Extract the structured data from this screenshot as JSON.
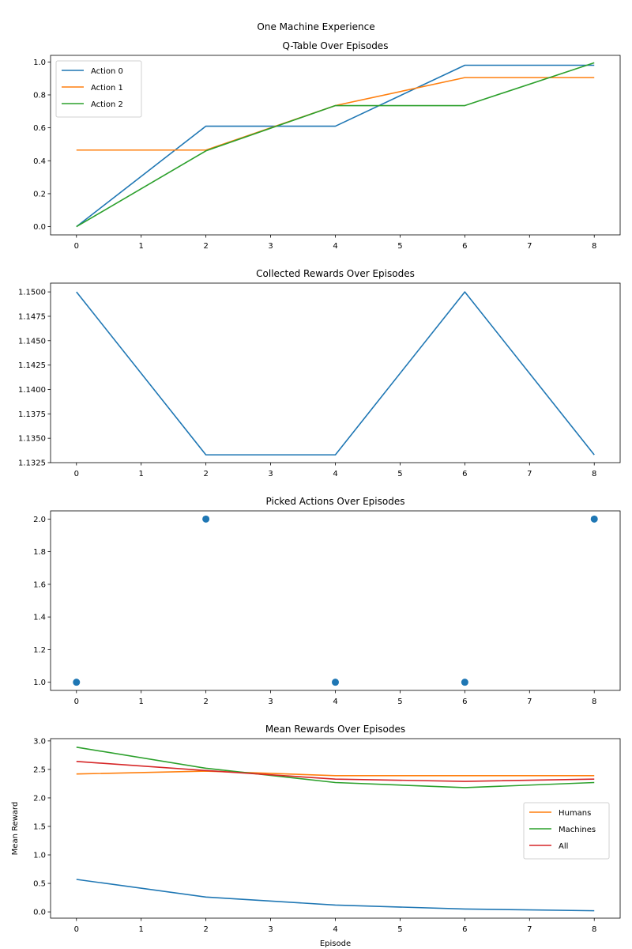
{
  "suptitle": "One Machine Experience",
  "chart_data": [
    {
      "type": "line",
      "title": "Q-Table Over Episodes",
      "xlabel": "",
      "ylabel": "",
      "xlim": [
        -0.4,
        8.4
      ],
      "ylim": [
        -0.05,
        1.04
      ],
      "xticks": [
        0,
        1,
        2,
        3,
        4,
        5,
        6,
        7,
        8
      ],
      "yticks": [
        0.0,
        0.2,
        0.4,
        0.6,
        0.8,
        1.0
      ],
      "ytick_decimals": 1,
      "grid": false,
      "legend": "upper-left",
      "series": [
        {
          "name": "Action 0",
          "color": "#1f77b4",
          "x": [
            0,
            2,
            4,
            6,
            8
          ],
          "y": [
            0.0,
            0.61,
            0.61,
            0.98,
            0.98
          ]
        },
        {
          "name": "Action 1",
          "color": "#ff7f0e",
          "x": [
            0,
            2,
            4,
            6,
            8
          ],
          "y": [
            0.465,
            0.465,
            0.735,
            0.905,
            0.905
          ]
        },
        {
          "name": "Action 2",
          "color": "#2ca02c",
          "x": [
            0,
            2,
            4,
            6,
            8
          ],
          "y": [
            0.0,
            0.46,
            0.735,
            0.735,
            0.995
          ]
        }
      ]
    },
    {
      "type": "line",
      "title": "Collected Rewards Over Episodes",
      "xlabel": "",
      "ylabel": "",
      "xlim": [
        -0.4,
        8.4
      ],
      "ylim": [
        1.1325,
        1.1509
      ],
      "xticks": [
        0,
        1,
        2,
        3,
        4,
        5,
        6,
        7,
        8
      ],
      "yticks": [
        1.1325,
        1.135,
        1.1375,
        1.14,
        1.1425,
        1.145,
        1.1475,
        1.15
      ],
      "ytick_decimals": 4,
      "grid": false,
      "series": [
        {
          "color": "#1f77b4",
          "x": [
            0,
            2,
            4,
            6,
            8
          ],
          "y": [
            1.15,
            1.1333,
            1.1333,
            1.15,
            1.1333
          ]
        }
      ]
    },
    {
      "type": "scatter",
      "title": "Picked Actions Over Episodes",
      "xlabel": "",
      "ylabel": "",
      "xlim": [
        -0.4,
        8.4
      ],
      "ylim": [
        0.95,
        2.05
      ],
      "xticks": [
        0,
        1,
        2,
        3,
        4,
        5,
        6,
        7,
        8
      ],
      "yticks": [
        1.0,
        1.2,
        1.4,
        1.6,
        1.8,
        2.0
      ],
      "ytick_decimals": 1,
      "grid": false,
      "series": [
        {
          "color": "#1f77b4",
          "x": [
            0,
            2,
            4,
            6,
            8
          ],
          "y": [
            1,
            2,
            1,
            1,
            2
          ]
        }
      ]
    },
    {
      "type": "line",
      "title": "Mean Rewards Over Episodes",
      "xlabel": "Episode",
      "ylabel": "Mean Reward",
      "xlim": [
        -0.4,
        8.4
      ],
      "ylim": [
        -0.11,
        3.04
      ],
      "xticks": [
        0,
        1,
        2,
        3,
        4,
        5,
        6,
        7,
        8
      ],
      "yticks": [
        0.0,
        0.5,
        1.0,
        1.5,
        2.0,
        2.5,
        3.0
      ],
      "ytick_decimals": 1,
      "grid": false,
      "legend": "center-right",
      "series": [
        {
          "color": "#1f77b4",
          "x": [
            0,
            2,
            4,
            6,
            8
          ],
          "y": [
            0.57,
            0.26,
            0.12,
            0.05,
            0.02
          ]
        },
        {
          "name": "Humans",
          "color": "#ff7f0e",
          "x": [
            0,
            2,
            4,
            6,
            8
          ],
          "y": [
            2.42,
            2.47,
            2.39,
            2.39,
            2.39
          ]
        },
        {
          "name": "Machines",
          "color": "#2ca02c",
          "x": [
            0,
            2,
            4,
            6,
            8
          ],
          "y": [
            2.89,
            2.52,
            2.27,
            2.18,
            2.27
          ]
        },
        {
          "name": "All",
          "color": "#d62728",
          "x": [
            0,
            2,
            4,
            6,
            8
          ],
          "y": [
            2.64,
            2.48,
            2.33,
            2.29,
            2.33
          ]
        }
      ]
    }
  ]
}
